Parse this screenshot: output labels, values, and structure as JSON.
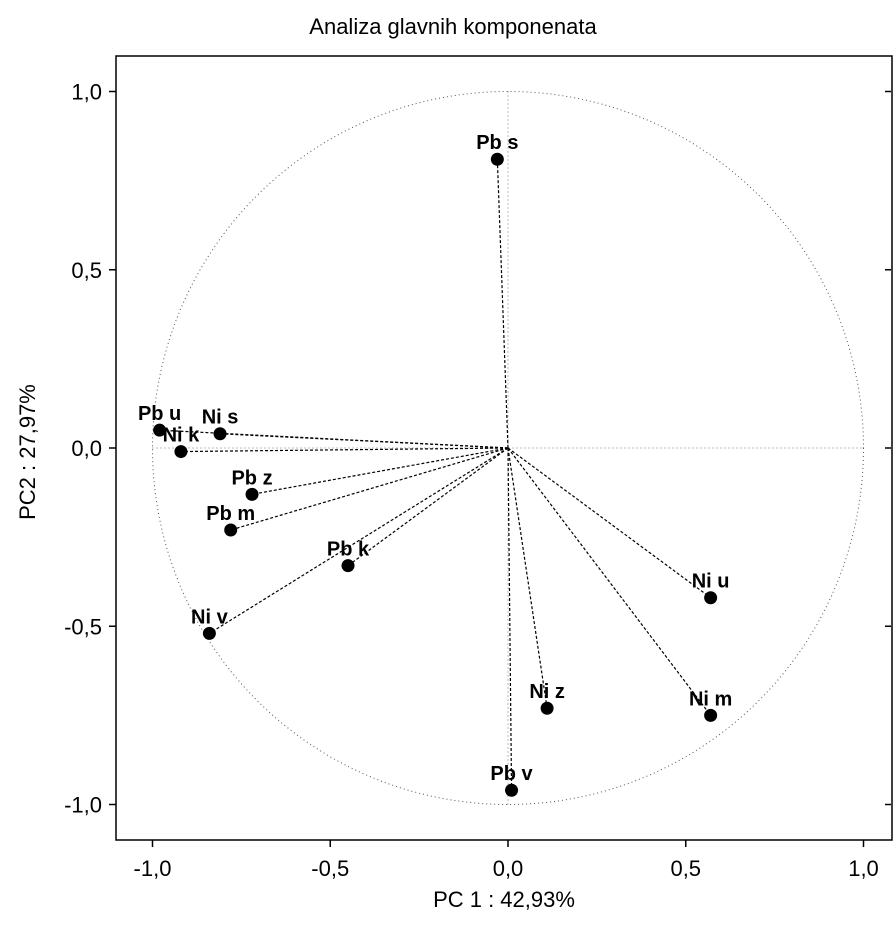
{
  "chart_data": {
    "type": "scatter",
    "title": "Analiza glavnih komponenata",
    "xlabel": "PC 1 : 42,93%",
    "ylabel": "PC2 : 27,97%",
    "xlim": [
      -1.1,
      1.1
    ],
    "ylim": [
      -1.1,
      1.1
    ],
    "xticks": [
      {
        "value": -1.0,
        "label": "-1,0"
      },
      {
        "value": -0.5,
        "label": "-0,5"
      },
      {
        "value": 0.0,
        "label": "0,0"
      },
      {
        "value": 0.5,
        "label": "0,5"
      },
      {
        "value": 1.0,
        "label": "1,0"
      }
    ],
    "yticks": [
      {
        "value": 1.0,
        "label": "1,0"
      },
      {
        "value": 0.5,
        "label": "0,5"
      },
      {
        "value": 0.0,
        "label": "0,0"
      },
      {
        "value": -0.5,
        "label": "-0,5"
      },
      {
        "value": -1.0,
        "label": "-1,0"
      }
    ],
    "unit_circle": true,
    "loading_vectors_from_origin": true,
    "grid": false,
    "points": [
      {
        "label": "Pb s",
        "x": -0.03,
        "y": 0.81
      },
      {
        "label": "Pb u",
        "x": -0.98,
        "y": 0.05
      },
      {
        "label": "Ni k",
        "x": -0.92,
        "y": -0.01
      },
      {
        "label": "Ni s",
        "x": -0.81,
        "y": 0.04
      },
      {
        "label": "Pb z",
        "x": -0.72,
        "y": -0.13
      },
      {
        "label": "Pb m",
        "x": -0.78,
        "y": -0.23
      },
      {
        "label": "Pb k",
        "x": -0.45,
        "y": -0.33
      },
      {
        "label": "Ni v",
        "x": -0.84,
        "y": -0.52
      },
      {
        "label": "Ni u",
        "x": 0.57,
        "y": -0.42
      },
      {
        "label": "Ni z",
        "x": 0.11,
        "y": -0.73
      },
      {
        "label": "Ni m",
        "x": 0.57,
        "y": -0.75
      },
      {
        "label": "Pb v",
        "x": 0.01,
        "y": -0.96
      }
    ]
  }
}
